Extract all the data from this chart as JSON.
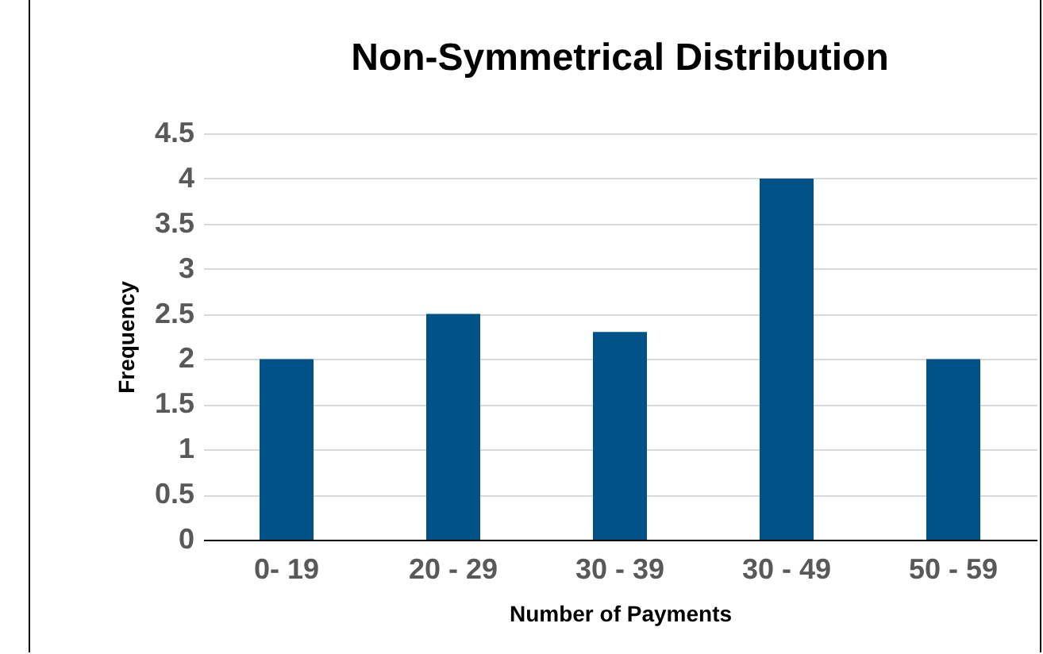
{
  "chart_data": {
    "type": "bar",
    "title": "Non-Symmetrical Distribution",
    "xlabel": "Number of Payments",
    "ylabel": "Frequency",
    "categories": [
      "0- 19",
      "20 - 29",
      "30 - 39",
      "30 - 49",
      "50 - 59"
    ],
    "values": [
      2,
      2.5,
      2.3,
      4,
      2
    ],
    "color": "#005288",
    "ylim": [
      0,
      4.5
    ],
    "yticks": [
      0,
      0.5,
      1,
      1.5,
      2,
      2.5,
      3,
      3.5,
      4,
      4.5
    ],
    "grid": "y"
  }
}
